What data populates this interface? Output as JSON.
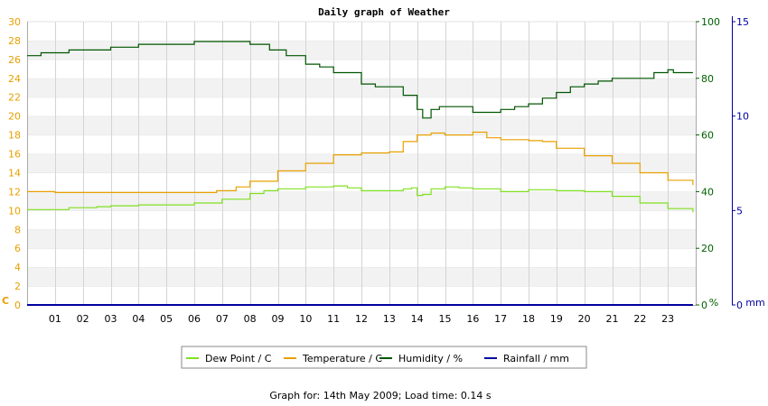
{
  "chart_data": {
    "type": "line",
    "title": "Daily graph of Weather",
    "footer": "Graph for: 14th May 2009; Load time: 0.14 s",
    "grid": true,
    "legend_placement": "bottom",
    "x_ticks": [
      "01",
      "02",
      "03",
      "04",
      "05",
      "06",
      "07",
      "08",
      "09",
      "10",
      "11",
      "12",
      "13",
      "14",
      "15",
      "16",
      "17",
      "18",
      "19",
      "20",
      "21",
      "22",
      "23"
    ],
    "xlim": [
      0,
      24
    ],
    "axes": {
      "left": {
        "unit_label": "C",
        "ticks": [
          "0",
          "2",
          "4",
          "6",
          "8",
          "10",
          "12",
          "14",
          "16",
          "18",
          "20",
          "22",
          "24",
          "26",
          "28",
          "30"
        ],
        "ylim": [
          0,
          30
        ],
        "color": "#e8a000"
      },
      "right1": {
        "unit_label": "%",
        "ticks": [
          "0",
          "20",
          "40",
          "60",
          "80",
          "100"
        ],
        "ylim": [
          0,
          100
        ],
        "color": "#006000"
      },
      "right2": {
        "unit_label": "mm",
        "ticks": [
          "0",
          "5",
          "10",
          "15"
        ],
        "ylim": [
          0,
          15
        ],
        "color": "#0000a0"
      }
    },
    "series": [
      {
        "name": "Dew Point / C",
        "axis": "left",
        "color": "#80e020",
        "points": [
          [
            0,
            10.1
          ],
          [
            1,
            10.1
          ],
          [
            1.5,
            10.3
          ],
          [
            2.5,
            10.4
          ],
          [
            3,
            10.5
          ],
          [
            4,
            10.6
          ],
          [
            5,
            10.6
          ],
          [
            6,
            10.8
          ],
          [
            7,
            11.2
          ],
          [
            8,
            11.8
          ],
          [
            8.5,
            12.1
          ],
          [
            9,
            12.3
          ],
          [
            10,
            12.5
          ],
          [
            11,
            12.6
          ],
          [
            11.5,
            12.4
          ],
          [
            12,
            12.1
          ],
          [
            13,
            12.1
          ],
          [
            13.5,
            12.3
          ],
          [
            13.8,
            12.4
          ],
          [
            14,
            11.6
          ],
          [
            14.2,
            11.7
          ],
          [
            14.5,
            12.3
          ],
          [
            15,
            12.5
          ],
          [
            15.5,
            12.4
          ],
          [
            16,
            12.3
          ],
          [
            17,
            12.0
          ],
          [
            18,
            12.2
          ],
          [
            19,
            12.1
          ],
          [
            20,
            12.0
          ],
          [
            21,
            11.5
          ],
          [
            22,
            10.8
          ],
          [
            23,
            10.2
          ],
          [
            23.9,
            9.8
          ]
        ]
      },
      {
        "name": "Temperature / C",
        "axis": "left",
        "color": "#e8a000",
        "points": [
          [
            0,
            12.0
          ],
          [
            1,
            11.9
          ],
          [
            6,
            11.9
          ],
          [
            6.8,
            12.1
          ],
          [
            7.5,
            12.5
          ],
          [
            8,
            13.1
          ],
          [
            9,
            14.2
          ],
          [
            10,
            15.0
          ],
          [
            11,
            15.9
          ],
          [
            12,
            16.1
          ],
          [
            13,
            16.2
          ],
          [
            13.5,
            17.3
          ],
          [
            14,
            18.0
          ],
          [
            14.5,
            18.2
          ],
          [
            15,
            18.0
          ],
          [
            15.5,
            18.0
          ],
          [
            16,
            18.3
          ],
          [
            16.5,
            17.7
          ],
          [
            17,
            17.5
          ],
          [
            17.5,
            17.5
          ],
          [
            18,
            17.4
          ],
          [
            18.5,
            17.3
          ],
          [
            19,
            16.6
          ],
          [
            20,
            15.8
          ],
          [
            21,
            15.0
          ],
          [
            22,
            14.0
          ],
          [
            23,
            13.2
          ],
          [
            23.9,
            12.7
          ]
        ]
      },
      {
        "name": "Humidity / %",
        "axis": "right1",
        "color": "#005500",
        "points": [
          [
            0,
            88
          ],
          [
            0.5,
            89
          ],
          [
            1,
            89
          ],
          [
            1.5,
            90
          ],
          [
            2,
            90
          ],
          [
            3,
            91
          ],
          [
            4,
            92
          ],
          [
            5,
            92
          ],
          [
            6,
            93
          ],
          [
            7,
            93
          ],
          [
            7.7,
            93
          ],
          [
            8,
            92
          ],
          [
            8.7,
            90
          ],
          [
            9.3,
            88
          ],
          [
            10,
            85
          ],
          [
            10.5,
            84
          ],
          [
            11,
            82
          ],
          [
            12,
            78
          ],
          [
            12.5,
            77
          ],
          [
            13,
            77
          ],
          [
            13.5,
            74
          ],
          [
            14,
            69
          ],
          [
            14.2,
            66
          ],
          [
            14.5,
            69
          ],
          [
            14.8,
            70
          ],
          [
            15,
            70
          ],
          [
            15.5,
            70
          ],
          [
            16,
            68
          ],
          [
            16.5,
            68
          ],
          [
            17,
            69
          ],
          [
            17.5,
            70
          ],
          [
            18,
            71
          ],
          [
            18.5,
            73
          ],
          [
            19,
            75
          ],
          [
            19.5,
            77
          ],
          [
            20,
            78
          ],
          [
            20.5,
            79
          ],
          [
            21,
            80
          ],
          [
            22,
            80
          ],
          [
            22.5,
            82
          ],
          [
            22.8,
            82
          ],
          [
            23,
            83
          ],
          [
            23.2,
            82
          ],
          [
            23.9,
            82
          ]
        ]
      },
      {
        "name": "Rainfall / mm",
        "axis": "right2",
        "color": "#0000a0",
        "points": [
          [
            0,
            0
          ],
          [
            23.9,
            0
          ]
        ]
      }
    ]
  }
}
